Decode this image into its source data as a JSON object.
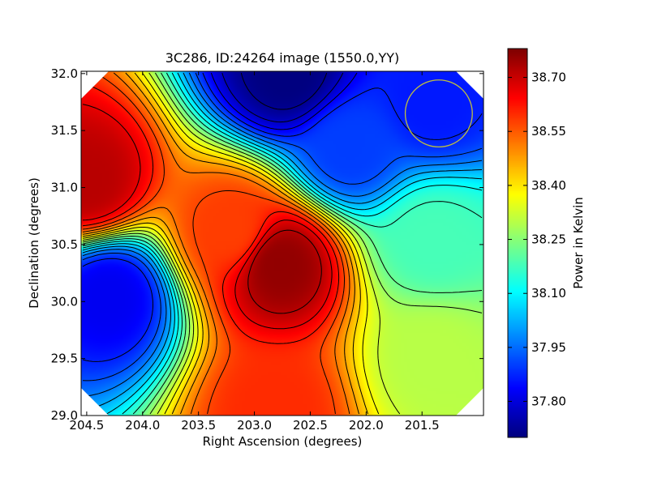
{
  "chart_data": {
    "type": "heatmap",
    "title": "3C286, ID:24264 image (1550.0,YY)",
    "xlabel": "Right Ascension (degrees)",
    "ylabel": "Declination (degrees)",
    "xlim": [
      204.55,
      200.95
    ],
    "ylim": [
      29.0,
      32.02
    ],
    "x_ticks": [
      204.5,
      204.0,
      203.5,
      203.0,
      202.5,
      202.0,
      201.5
    ],
    "x_tick_labels": [
      "204.5",
      "204.0",
      "203.5",
      "203.0",
      "202.5",
      "202.0",
      "201.5"
    ],
    "y_ticks": [
      29.0,
      29.5,
      30.0,
      30.5,
      31.0,
      31.5,
      32.0
    ],
    "y_tick_labels": [
      "29.0",
      "29.5",
      "30.0",
      "30.5",
      "31.0",
      "31.5",
      "32.0"
    ],
    "colormap": "jet",
    "colorbar": {
      "label": "Power in Kelvin",
      "range": [
        37.7,
        38.78
      ],
      "ticks": [
        37.8,
        37.95,
        38.1,
        38.25,
        38.4,
        38.55,
        38.7
      ],
      "tick_labels": [
        "37.80",
        "37.95",
        "38.10",
        "38.25",
        "38.40",
        "38.55",
        "38.70"
      ]
    },
    "features": [
      {
        "kind": "maximum",
        "ra": 202.78,
        "dec": 30.33,
        "value": 38.76
      },
      {
        "kind": "high",
        "ra": 204.5,
        "dec": 31.05,
        "value": 38.72
      },
      {
        "kind": "ridge",
        "ra": 203.2,
        "dec": 30.62,
        "value": 38.58
      },
      {
        "kind": "high",
        "ra": 202.82,
        "dec": 29.05,
        "value": 38.6
      },
      {
        "kind": "minimum",
        "ra": 202.7,
        "dec": 32.0,
        "value": 37.7
      },
      {
        "kind": "low",
        "ra": 204.3,
        "dec": 30.05,
        "value": 37.82
      },
      {
        "kind": "low",
        "ra": 201.4,
        "dec": 31.75,
        "value": 37.86
      },
      {
        "kind": "plateau",
        "ra": 201.4,
        "dec": 30.55,
        "value": 38.18
      },
      {
        "kind": "slope",
        "ra": 202.15,
        "dec": 31.35,
        "value": 37.9
      },
      {
        "kind": "slope",
        "ra": 201.4,
        "dec": 29.5,
        "value": 38.3
      }
    ],
    "beam_circle": {
      "ra": 201.35,
      "dec": 31.65,
      "radius_deg": 0.3
    },
    "legend": "none",
    "grid": false
  },
  "colors": {
    "contour": "#000000",
    "beam_circle": "#bfbf3f",
    "background": "#ffffff"
  }
}
